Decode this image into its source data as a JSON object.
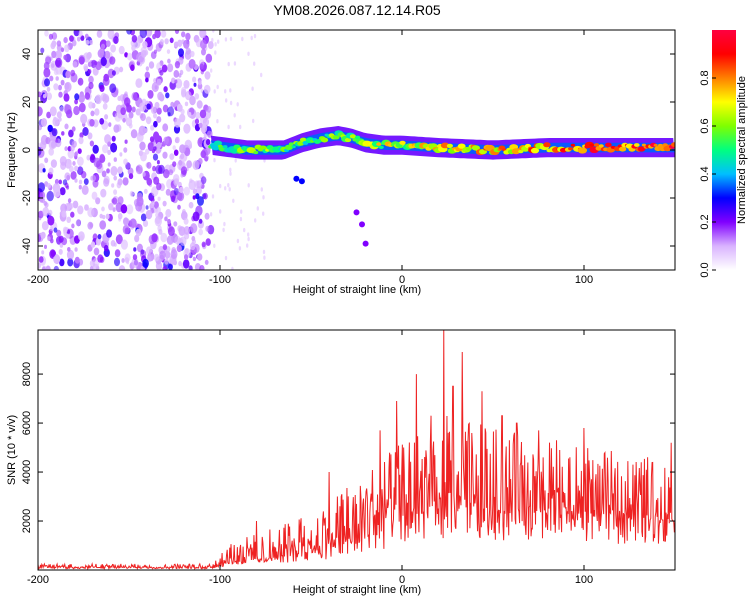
{
  "title": "YM08.2026.087.12.14.R05",
  "colors": {
    "snr_line": "#ee2222",
    "axes": "#000000",
    "background": "#ffffff"
  },
  "chart_data": [
    {
      "type": "heatmap",
      "name": "spectrogram",
      "xlabel": "Height of straight line (km)",
      "ylabel": "Frequency (Hz)",
      "xlim": [
        -200,
        150
      ],
      "ylim": [
        -50,
        50
      ],
      "xticks": [
        -200,
        -100,
        0,
        100
      ],
      "xtick_labels": [
        "-200",
        "-100",
        "0",
        "100"
      ],
      "yticks": [
        -40,
        -20,
        0,
        20,
        40
      ],
      "ytick_labels": [
        "-40",
        "-20",
        "0",
        "20",
        "40"
      ],
      "colorbar": {
        "label": "Normalized spectral amplitude",
        "range": [
          0,
          1
        ],
        "ticks": [
          0.0,
          0.2,
          0.4,
          0.6,
          0.8
        ],
        "tick_labels": [
          "0.0",
          "0.2",
          "0.4",
          "0.6",
          "0.8"
        ],
        "colormap": [
          "#ffffff",
          "#d9b3ff",
          "#8000ff",
          "#0000ff",
          "#00bfff",
          "#00ff80",
          "#7fff00",
          "#ffff00",
          "#ff8000",
          "#ff0000",
          "#ff0040"
        ]
      },
      "features": {
        "noise_region_x": [
          -200,
          -105
        ],
        "ridge": [
          [
            -105,
            2
          ],
          [
            -95,
            1
          ],
          [
            -85,
            0
          ],
          [
            -75,
            0
          ],
          [
            -65,
            0
          ],
          [
            -55,
            3
          ],
          [
            -45,
            5
          ],
          [
            -35,
            6
          ],
          [
            -28,
            5
          ],
          [
            -20,
            3
          ],
          [
            -10,
            2
          ],
          [
            0,
            2
          ],
          [
            20,
            1
          ],
          [
            50,
            0
          ],
          [
            80,
            1
          ],
          [
            110,
            1
          ],
          [
            150,
            1
          ]
        ],
        "secondary_blobs": [
          [
            -58,
            -12
          ],
          [
            -55,
            -13
          ],
          [
            -25,
            -26
          ],
          [
            -22,
            -31
          ],
          [
            -20,
            -39
          ]
        ]
      }
    },
    {
      "type": "line",
      "name": "snr",
      "xlabel": "Height of straight line (km)",
      "ylabel": "SNR (10 * v/v)",
      "xlim": [
        -200,
        150
      ],
      "ylim": [
        0,
        9800
      ],
      "xticks": [
        -200,
        -100,
        0,
        100
      ],
      "xtick_labels": [
        "-200",
        "-100",
        "0",
        "100"
      ],
      "yticks": [
        2000,
        4000,
        6000,
        8000
      ],
      "ytick_labels": [
        "2000",
        "4000",
        "6000",
        "8000"
      ],
      "envelope": [
        {
          "x": -200,
          "base": 100,
          "peak": 250
        },
        {
          "x": -105,
          "base": 100,
          "peak": 250
        },
        {
          "x": -100,
          "base": 200,
          "peak": 800
        },
        {
          "x": -90,
          "base": 400,
          "peak": 1300
        },
        {
          "x": -80,
          "base": 400,
          "peak": 1500
        },
        {
          "x": -60,
          "base": 600,
          "peak": 2000
        },
        {
          "x": -40,
          "base": 900,
          "peak": 3200
        },
        {
          "x": -20,
          "base": 1200,
          "peak": 4200
        },
        {
          "x": 0,
          "base": 2200,
          "peak": 5200
        },
        {
          "x": 20,
          "base": 2400,
          "peak": 6500
        },
        {
          "x": 40,
          "base": 2500,
          "peak": 6000
        },
        {
          "x": 80,
          "base": 2300,
          "peak": 5300
        },
        {
          "x": 120,
          "base": 2100,
          "peak": 4800
        },
        {
          "x": 150,
          "base": 2000,
          "peak": 4500
        }
      ],
      "spikes": [
        [
          -80,
          2000
        ],
        [
          -40,
          4000
        ],
        [
          -12,
          5700
        ],
        [
          -3,
          6900
        ],
        [
          8,
          8000
        ],
        [
          16,
          6300
        ],
        [
          23,
          9800
        ],
        [
          28,
          7500
        ],
        [
          33,
          8900
        ],
        [
          44,
          7300
        ],
        [
          55,
          6300
        ],
        [
          63,
          6000
        ],
        [
          75,
          5700
        ],
        [
          85,
          5300
        ],
        [
          100,
          5800
        ],
        [
          135,
          4600
        ],
        [
          148,
          5200
        ]
      ]
    }
  ]
}
